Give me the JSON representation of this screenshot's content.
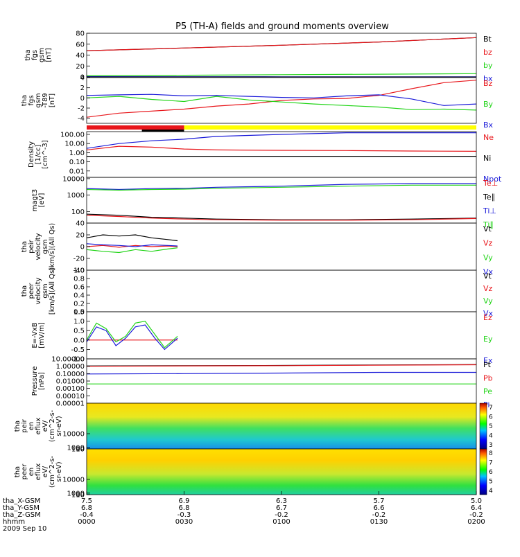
{
  "title": "P5 (TH-A) fields and ground moments overview",
  "colors": {
    "black": "#000000",
    "red": "#e8161b",
    "green": "#22d418",
    "blue": "#1a1ad8",
    "yellow": "#ffff00"
  },
  "chart_data": [
    {
      "type": "line",
      "id": "fgs",
      "ylabel_lines": [
        "tha",
        "fgs",
        "gsm",
        "[nT]"
      ],
      "ylim": [
        0,
        80
      ],
      "yticks": [
        "0",
        "20",
        "40",
        "60",
        "80"
      ],
      "legend": [
        {
          "name": "Bt",
          "color": "#000000"
        },
        {
          "name": "bz",
          "color": "#e8161b"
        },
        {
          "name": "by",
          "color": "#22d418"
        },
        {
          "name": "bx",
          "color": "#1a1ad8"
        }
      ],
      "series": [
        {
          "name": "Bt",
          "color": "#000000",
          "x": [
            0,
            30,
            60,
            90,
            120
          ],
          "y": [
            48,
            53,
            58,
            64,
            72
          ]
        },
        {
          "name": "bz",
          "color": "#e8161b",
          "x": [
            0,
            30,
            60,
            90,
            120
          ],
          "y": [
            48,
            53,
            58,
            64,
            72
          ]
        },
        {
          "name": "by",
          "color": "#22d418",
          "x": [
            0,
            30,
            60,
            90,
            120
          ],
          "y": [
            2,
            3,
            4,
            5,
            6
          ]
        },
        {
          "name": "bx",
          "color": "#1a1ad8",
          "x": [
            0,
            30,
            60,
            90,
            120
          ],
          "y": [
            0.5,
            0.4,
            0.3,
            0.2,
            0.1
          ]
        }
      ]
    },
    {
      "type": "line",
      "id": "fgs-t89",
      "ylabel_lines": [
        "tha",
        "fgs",
        "gsm",
        "-T89",
        "[nT]"
      ],
      "ylim": [
        -5,
        4
      ],
      "yticks": [
        "-4",
        "-2",
        "0",
        "2",
        "4"
      ],
      "legend": [
        {
          "name": "Bz",
          "color": "#e8161b"
        },
        {
          "name": "By",
          "color": "#22d418"
        },
        {
          "name": "Bx",
          "color": "#1a1ad8"
        }
      ],
      "series": [
        {
          "name": "Bz",
          "color": "#e8161b",
          "x": [
            0,
            10,
            20,
            30,
            40,
            50,
            60,
            70,
            80,
            90,
            100,
            110,
            120
          ],
          "y": [
            -3.8,
            -3,
            -2.6,
            -2.2,
            -1.6,
            -1.2,
            -0.5,
            -0.2,
            -0.1,
            0.5,
            1.8,
            3,
            3.5
          ]
        },
        {
          "name": "By",
          "color": "#22d418",
          "x": [
            0,
            10,
            20,
            30,
            40,
            50,
            60,
            70,
            80,
            90,
            100,
            110,
            120
          ],
          "y": [
            0,
            0.3,
            -0.3,
            -0.7,
            0.3,
            -0.4,
            -0.8,
            -1.2,
            -1.5,
            -1.8,
            -2.3,
            -2.2,
            -2.4
          ]
        },
        {
          "name": "Bx",
          "color": "#1a1ad8",
          "x": [
            0,
            10,
            20,
            30,
            40,
            50,
            60,
            70,
            80,
            90,
            100,
            110,
            120
          ],
          "y": [
            0.5,
            0.6,
            0.7,
            0.4,
            0.5,
            0.3,
            0.1,
            0,
            0.4,
            0.6,
            -0.2,
            -1.5,
            -1.2
          ]
        }
      ]
    },
    {
      "type": "line",
      "id": "density",
      "scale": "log",
      "ylabel_lines": [
        "Density",
        "[1/cc]",
        "[cm^-3]"
      ],
      "ylim": [
        0.002,
        200
      ],
      "yticks": [
        "0.01",
        "0.10",
        "1.00",
        "10.00",
        "100.00"
      ],
      "yticks_values": [
        0.01,
        0.1,
        1,
        10,
        100
      ],
      "legend": [
        {
          "name": "Ne",
          "color": "#e8161b"
        },
        {
          "name": "Ni",
          "color": "#000000"
        },
        {
          "name": "Npot",
          "color": "#1a1ad8"
        }
      ],
      "series": [
        {
          "name": "Ne",
          "color": "#e8161b",
          "x": [
            0,
            10,
            20,
            30,
            40,
            60,
            80,
            100,
            120
          ],
          "y": [
            2,
            5,
            4,
            2.5,
            2,
            1.8,
            1.7,
            1.5,
            1.4
          ]
        },
        {
          "name": "Ni",
          "color": "#000000",
          "x": [
            0,
            20,
            40,
            60,
            80,
            100,
            120
          ],
          "y": [
            0.4,
            0.4,
            0.4,
            0.4,
            0.4,
            0.4,
            0.4
          ]
        },
        {
          "name": "Npot",
          "color": "#1a1ad8",
          "x": [
            0,
            10,
            20,
            30,
            40,
            60,
            80,
            100,
            120
          ],
          "y": [
            3,
            10,
            20,
            30,
            60,
            100,
            150,
            150,
            150
          ]
        }
      ]
    },
    {
      "type": "line",
      "id": "magt3",
      "scale": "log",
      "ylabel_lines": [
        "magt3",
        "[eV]"
      ],
      "ylim": [
        20,
        12000
      ],
      "yticks": [
        "100",
        "1000",
        "10000"
      ],
      "yticks_values": [
        100,
        1000,
        10000
      ],
      "legend": [
        {
          "name": "Te⊥",
          "color": "#e8161b"
        },
        {
          "name": "Te∥",
          "color": "#000000"
        },
        {
          "name": "Ti⊥",
          "color": "#1a1ad8"
        },
        {
          "name": "Ti∥",
          "color": "#22d418"
        }
      ],
      "series": [
        {
          "name": "Te∥",
          "color": "#000000",
          "x": [
            0,
            10,
            20,
            30,
            40,
            60,
            80,
            100,
            120
          ],
          "y": [
            70,
            60,
            45,
            40,
            35,
            32,
            32,
            35,
            40
          ]
        },
        {
          "name": "Te⊥",
          "color": "#e8161b",
          "x": [
            0,
            10,
            20,
            30,
            40,
            60,
            80,
            100,
            120
          ],
          "y": [
            60,
            50,
            40,
            35,
            32,
            30,
            30,
            32,
            38
          ]
        },
        {
          "name": "Ti⊥",
          "color": "#1a1ad8",
          "x": [
            0,
            10,
            20,
            30,
            40,
            60,
            80,
            100,
            120
          ],
          "y": [
            2500,
            2200,
            2500,
            2600,
            3000,
            3500,
            4500,
            5000,
            5000
          ]
        },
        {
          "name": "Ti∥",
          "color": "#22d418",
          "x": [
            0,
            10,
            20,
            30,
            40,
            60,
            80,
            100,
            120
          ],
          "y": [
            2200,
            2000,
            2200,
            2300,
            2600,
            3000,
            3500,
            4000,
            4000
          ]
        }
      ]
    },
    {
      "type": "line",
      "id": "peir-vel",
      "ylabel_lines": [
        "tha",
        "peir",
        "velocity",
        "gsm",
        "[km/s](All Qs)"
      ],
      "ylim": [
        -40,
        40
      ],
      "yticks": [
        "-40",
        "-20",
        "0",
        "20",
        "40"
      ],
      "legend": [
        {
          "name": "Vt",
          "color": "#000000"
        },
        {
          "name": "Vz",
          "color": "#e8161b"
        },
        {
          "name": "Vy",
          "color": "#22d418"
        },
        {
          "name": "Vx",
          "color": "#1a1ad8"
        }
      ],
      "series": [
        {
          "name": "Vt",
          "color": "#000000",
          "x": [
            0,
            5,
            10,
            15,
            20,
            25,
            28
          ],
          "y": [
            15,
            20,
            18,
            20,
            15,
            12,
            10
          ]
        },
        {
          "name": "Vz",
          "color": "#e8161b",
          "x": [
            0,
            5,
            10,
            15,
            20,
            25,
            28
          ],
          "y": [
            0,
            2,
            -1,
            2,
            0,
            1,
            0
          ]
        },
        {
          "name": "Vy",
          "color": "#22d418",
          "x": [
            0,
            5,
            10,
            15,
            20,
            25,
            28
          ],
          "y": [
            -5,
            -8,
            -10,
            -5,
            -8,
            -4,
            -2
          ]
        },
        {
          "name": "Vx",
          "color": "#1a1ad8",
          "x": [
            0,
            5,
            10,
            15,
            20,
            25,
            28
          ],
          "y": [
            5,
            3,
            2,
            0,
            3,
            2,
            1
          ]
        }
      ]
    },
    {
      "type": "line",
      "id": "peer-vel",
      "ylabel_lines": [
        "tha",
        "peer",
        "velocity",
        "gsm",
        "[km/s](All Qs)"
      ],
      "ylim": [
        0,
        1
      ],
      "yticks": [
        "0.0",
        "0.2",
        "0.4",
        "0.6",
        "0.8",
        "1.0"
      ],
      "legend": [
        {
          "name": "Vt",
          "color": "#000000"
        },
        {
          "name": "Vz",
          "color": "#e8161b"
        },
        {
          "name": "Vy",
          "color": "#22d418"
        },
        {
          "name": "Vx",
          "color": "#1a1ad8"
        }
      ],
      "series": []
    },
    {
      "type": "line",
      "id": "efield",
      "ylabel_lines": [
        "E=-VxB",
        "[mV/m]"
      ],
      "ylim": [
        -1,
        1.5
      ],
      "yticks": [
        "-1.0",
        "-0.5",
        "0.0",
        "0.5",
        "1.0",
        "1.5"
      ],
      "legend": [
        {
          "name": "Ez",
          "color": "#e8161b"
        },
        {
          "name": "Ey",
          "color": "#22d418"
        },
        {
          "name": "Ex",
          "color": "#1a1ad8"
        }
      ],
      "series": [
        {
          "name": "Ez",
          "color": "#e8161b",
          "x": [
            0,
            5,
            10,
            15,
            20,
            25,
            28
          ],
          "y": [
            0,
            0,
            0,
            0,
            0,
            0,
            0
          ]
        },
        {
          "name": "Ey",
          "color": "#22d418",
          "x": [
            0,
            3,
            6,
            9,
            12,
            15,
            18,
            21,
            24,
            28
          ],
          "y": [
            0,
            0.9,
            0.6,
            -0.1,
            0.2,
            0.9,
            1.0,
            0.3,
            -0.4,
            0.2
          ]
        },
        {
          "name": "Ex",
          "color": "#1a1ad8",
          "x": [
            0,
            3,
            6,
            9,
            12,
            15,
            18,
            21,
            24,
            28
          ],
          "y": [
            -0.1,
            0.7,
            0.5,
            -0.3,
            0.1,
            0.7,
            0.8,
            0.1,
            -0.5,
            0.1
          ]
        }
      ]
    },
    {
      "type": "line",
      "id": "pressure",
      "scale": "log",
      "ylabel_lines": [
        "Pressure",
        "[nPa]"
      ],
      "ylim": [
        1e-05,
        10
      ],
      "yticks": [
        "0.00001",
        "0.00010",
        "0.00100",
        "0.01000",
        "0.10000",
        "1.00000",
        "10.00000"
      ],
      "yticks_values": [
        1e-05,
        0.0001,
        0.001,
        0.01,
        0.1,
        1,
        10
      ],
      "legend": [
        {
          "name": "Pt",
          "color": "#000000"
        },
        {
          "name": "Pb",
          "color": "#e8161b"
        },
        {
          "name": "Pe",
          "color": "#22d418"
        },
        {
          "name": "Pi",
          "color": "#1a1ad8"
        }
      ],
      "series": [
        {
          "name": "Pt",
          "color": "#000000",
          "x": [
            0,
            60,
            120
          ],
          "y": [
            1.1,
            1.3,
            1.7
          ]
        },
        {
          "name": "Pb",
          "color": "#e8161b",
          "x": [
            0,
            60,
            120
          ],
          "y": [
            1,
            1.2,
            1.6
          ]
        },
        {
          "name": "Pe",
          "color": "#22d418",
          "x": [
            0,
            60,
            120
          ],
          "y": [
            0.004,
            0.004,
            0.004
          ]
        },
        {
          "name": "Pi",
          "color": "#1a1ad8",
          "x": [
            0,
            30,
            60,
            90,
            120
          ],
          "y": [
            0.09,
            0.1,
            0.12,
            0.15,
            0.15
          ]
        }
      ]
    },
    {
      "type": "heatmap",
      "id": "peir-spec",
      "ylabel_lines": [
        "tha",
        "peir",
        "en",
        "eflux",
        "eV/",
        "(cm^2-s-",
        "sr-eV)"
      ],
      "ylim": [
        5,
        30000
      ],
      "yticks": [
        "10",
        "100",
        "1000",
        "10000"
      ],
      "yticks_values": [
        10,
        100,
        1000,
        10000
      ],
      "colorbar": {
        "ticks": [
          "10^3",
          "10^4",
          "10^5",
          "10^6",
          "10^7"
        ]
      }
    },
    {
      "type": "heatmap",
      "id": "peer-spec",
      "ylabel_lines": [
        "tha",
        "peer",
        "en",
        "eflux",
        "eV/",
        "(cm^2-s-",
        "sr-eV)"
      ],
      "ylim": [
        5,
        30000
      ],
      "yticks": [
        "10",
        "100",
        "1000",
        "10000"
      ],
      "yticks_values": [
        10,
        100,
        1000,
        10000
      ],
      "colorbar": {
        "ticks": [
          "10^4",
          "10^5",
          "10^6",
          "10^7",
          "10^8"
        ]
      }
    }
  ],
  "xaxis": {
    "rows": [
      {
        "label": "tha_X-GSM",
        "values": [
          "7.5",
          "6.9",
          "6.3",
          "5.7",
          "5.0"
        ]
      },
      {
        "label": "tha_Y-GSM",
        "values": [
          "6.8",
          "6.8",
          "6.7",
          "6.6",
          "6.4"
        ]
      },
      {
        "label": "tha_Z-GSM",
        "values": [
          "-0.4",
          "-0.3",
          "-0.2",
          "-0.2",
          "-0.2"
        ]
      },
      {
        "label": "hhmm",
        "values": [
          "0000",
          "0030",
          "0100",
          "0130",
          "0200"
        ]
      }
    ],
    "date": "2009 Sep 10"
  }
}
